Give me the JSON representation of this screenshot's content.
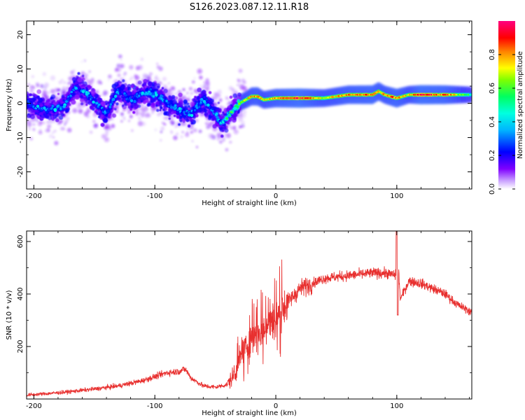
{
  "title": "S126.2023.087.12.11.R18",
  "chart_data": [
    {
      "type": "heatmap",
      "name": "spectrogram",
      "xlabel": "Height of straight line (km)",
      "ylabel": "Frequency (Hz)",
      "xlim": [
        -206,
        162
      ],
      "ylim": [
        -25,
        24
      ],
      "xticks": [
        -200,
        -100,
        0,
        100
      ],
      "xtick_labels": [
        "-200",
        "-100",
        "0",
        "100"
      ],
      "yticks": [
        -20,
        -10,
        0,
        10,
        20
      ],
      "ytick_labels": [
        "-20",
        "-10",
        "0",
        "10",
        "20"
      ],
      "colorbar": {
        "label": "Normalized spectral amplitude",
        "range": [
          0,
          1
        ],
        "ticks": [
          0.0,
          0.2,
          0.4,
          0.6,
          0.8
        ],
        "tick_labels": [
          "0.0",
          "0.2",
          "0.4",
          "0.6",
          "0.8"
        ],
        "colormap_stops": [
          "#ffffff",
          "#7f00ff",
          "#0000ff",
          "#00ffff",
          "#00ff00",
          "#ffff00",
          "#ff8000",
          "#ff0000",
          "#ff0080"
        ]
      },
      "ridge": {
        "x": [
          -206,
          -190,
          -175,
          -165,
          -150,
          -140,
          -130,
          -120,
          -110,
          -100,
          -90,
          -80,
          -70,
          -60,
          -50,
          -45,
          -40,
          -30,
          -20,
          -15,
          -10,
          0,
          20,
          40,
          60,
          80,
          85,
          90,
          100,
          110,
          120,
          140,
          162
        ],
        "y": [
          0,
          -2,
          -1,
          5,
          1,
          -3,
          4,
          1,
          3,
          3,
          0,
          -2,
          -3,
          1,
          -3,
          -6,
          -4,
          0,
          2,
          2,
          1,
          1.5,
          1.5,
          1.5,
          2.5,
          2.5,
          3.5,
          2.5,
          1.5,
          2.5,
          2.5,
          2.5,
          2.5
        ],
        "amplitude": [
          0.3,
          0.3,
          0.3,
          0.3,
          0.3,
          0.3,
          0.3,
          0.25,
          0.3,
          0.35,
          0.3,
          0.3,
          0.3,
          0.3,
          0.3,
          0.4,
          0.5,
          0.6,
          0.75,
          0.8,
          0.7,
          0.8,
          0.9,
          0.7,
          0.8,
          0.85,
          0.8,
          0.75,
          0.85,
          0.7,
          0.9,
          0.85,
          0.5
        ]
      }
    },
    {
      "type": "line",
      "name": "snr",
      "xlabel": "Height of straight line (km)",
      "ylabel": "SNR (10 * v/v)",
      "xlim": [
        -206,
        162
      ],
      "ylim": [
        0,
        640
      ],
      "xticks": [
        -200,
        -100,
        0,
        100
      ],
      "xtick_labels": [
        "-200",
        "-100",
        "0",
        "100"
      ],
      "yticks": [
        200,
        400,
        600
      ],
      "ytick_labels": [
        "200",
        "400",
        "600"
      ],
      "color": "#e8302f",
      "series": [
        {
          "x": [
            -206,
            -190,
            -170,
            -150,
            -130,
            -110,
            -100,
            -90,
            -80,
            -75,
            -70,
            -60,
            -50,
            -40,
            -35,
            -30,
            -25,
            -20,
            -10,
            0,
            10,
            20,
            40,
            60,
            80,
            90,
            100,
            101,
            103,
            110,
            120,
            130,
            140,
            150,
            162
          ],
          "y": [
            15,
            20,
            28,
            38,
            50,
            70,
            85,
            100,
            105,
            115,
            80,
            50,
            45,
            55,
            90,
            150,
            200,
            230,
            270,
            310,
            370,
            420,
            460,
            470,
            480,
            480,
            470,
            520,
            380,
            450,
            440,
            420,
            400,
            360,
            330
          ]
        }
      ]
    }
  ]
}
